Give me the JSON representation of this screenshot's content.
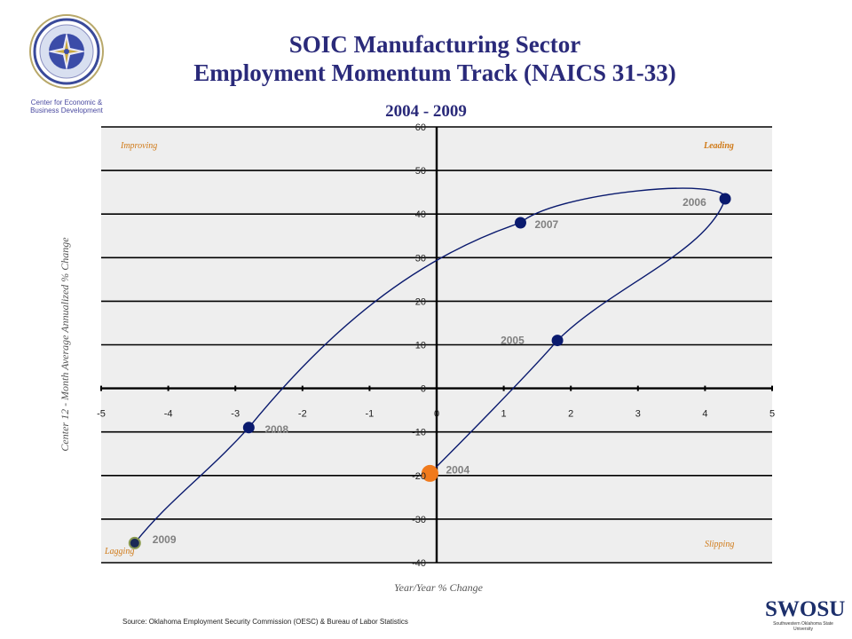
{
  "header": {
    "title_line1": "SOIC Manufacturing Sector",
    "title_line2": "Employment Momentum Track (NAICS 31-33)",
    "subtitle": "2004 - 2009"
  },
  "logo": {
    "caption_line1": "Center for Economic &",
    "caption_line2": "Business Development"
  },
  "footer": {
    "source": "Source: Oklahoma Employment Security Commission (OESC) & Bureau of Labor Statistics",
    "university_mark": "SWOSU",
    "university_name": "Southwestern Oklahoma State University"
  },
  "chart_data": {
    "type": "scatter",
    "xlabel": "Year/Year % Change",
    "ylabel": "Center 12 - Month Average Annualized % Change",
    "xlim": [
      -5,
      5
    ],
    "ylim": [
      -40,
      60
    ],
    "x_ticks": [
      "-5",
      "-4",
      "-3",
      "-2",
      "-1",
      "0",
      "1",
      "2",
      "3",
      "4",
      "5"
    ],
    "y_ticks": [
      "60",
      "50",
      "40",
      "30",
      "20",
      "10",
      "0",
      "-10",
      "-20",
      "-30",
      "-40"
    ],
    "grid": true,
    "quadrants": {
      "top_left": "Improving",
      "top_right": "Leading",
      "bottom_left": "Lagging",
      "bottom_right": "Slipping"
    },
    "points": [
      {
        "label": "2004",
        "x": -0.1,
        "y": -19.5
      },
      {
        "label": "2005",
        "x": 1.8,
        "y": 11
      },
      {
        "label": "2006",
        "x": 4.3,
        "y": 43.5
      },
      {
        "label": "2007",
        "x": 1.25,
        "y": 38
      },
      {
        "label": "2008",
        "x": -2.8,
        "y": -9
      },
      {
        "label": "2009",
        "x": -4.5,
        "y": -35.5
      }
    ],
    "colors": {
      "point": "#0a1a6e",
      "start_point": "#f07a1c",
      "line": "#0a1a6e",
      "quadrant_text": "#d07a18",
      "point_label": "#808080",
      "plot_bg": "#eeeeee"
    }
  }
}
